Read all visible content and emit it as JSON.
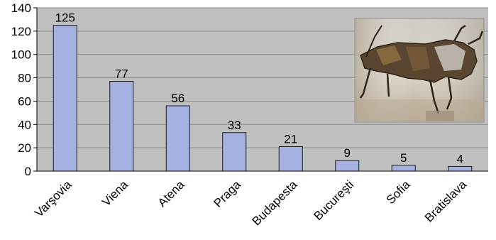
{
  "chart_data": {
    "type": "bar",
    "categories": [
      "Varşovia",
      "Viena",
      "Atena",
      "Praga",
      "Budapesta",
      "Bucureşti",
      "Sofia",
      "Bratislava"
    ],
    "values": [
      125,
      77,
      56,
      33,
      21,
      9,
      5,
      4
    ],
    "data_labels": [
      "125",
      "77",
      "56",
      "33",
      "21",
      "9",
      "5",
      "4"
    ],
    "yticks": [
      "0",
      "20",
      "40",
      "60",
      "80",
      "100",
      "120",
      "140"
    ],
    "ylim": [
      0,
      140
    ],
    "grid": true,
    "legend": "none",
    "colors": {
      "bar_fill": "#a5b1e1",
      "bar_stroke": "#1a1a1a",
      "plot_background": "#c0c0c0",
      "gridline": "#8a8a8a",
      "axis": "#000000"
    },
    "inset_image": {
      "icon": "metal-bull-sculpture-photo",
      "position": "top-right"
    }
  }
}
